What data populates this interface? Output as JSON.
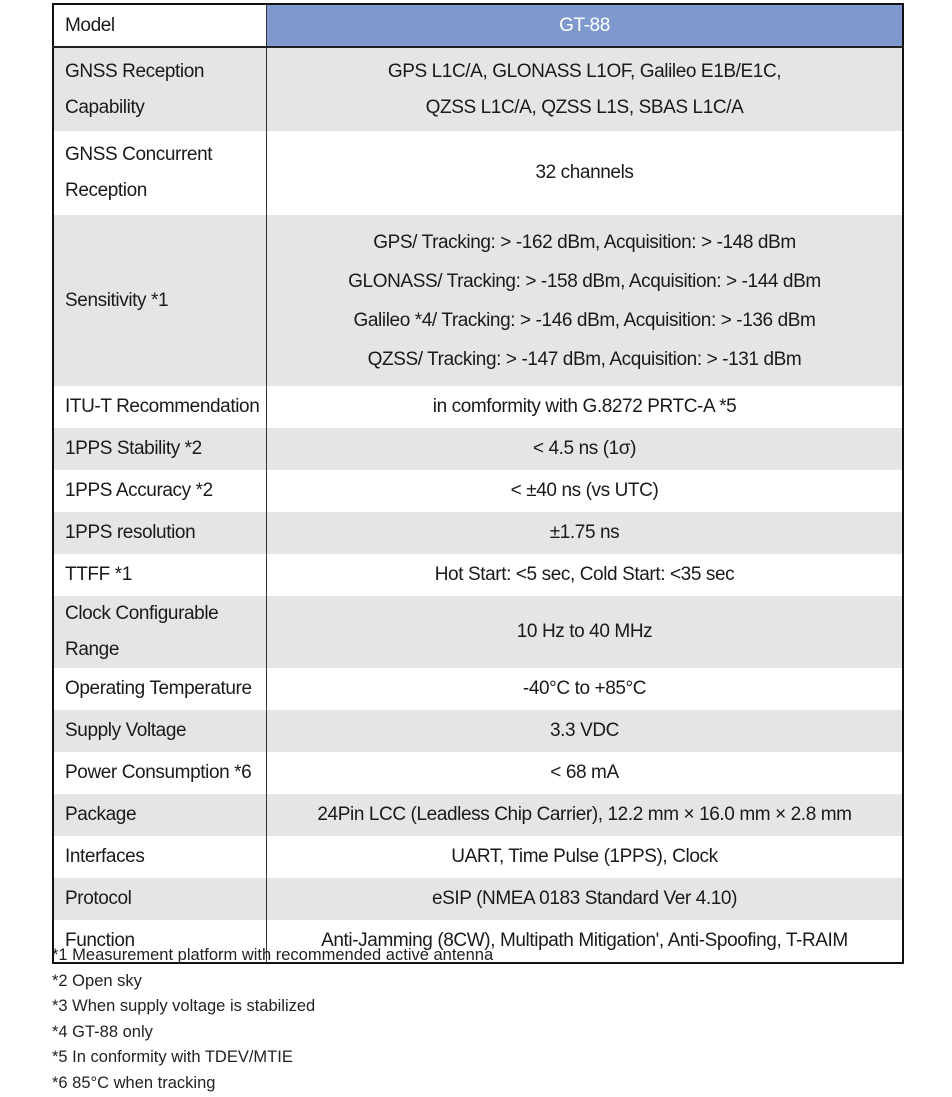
{
  "header": {
    "label": "Model",
    "value": "GT-88"
  },
  "rows": [
    {
      "label": [
        "GNSS Reception",
        "Capability"
      ],
      "value": [
        "GPS L1C/A, GLONASS L1OF, Galileo E1B/E1C,",
        "QZSS L1C/A, QZSS L1S, SBAS L1C/A"
      ]
    },
    {
      "label": [
        "GNSS Concurrent",
        "Reception"
      ],
      "value": [
        "32 channels"
      ]
    },
    {
      "label": [
        "Sensitivity  *1"
      ],
      "value": [
        "GPS/ Tracking: > -162 dBm, Acquisition: > -148 dBm",
        "GLONASS/ Tracking: > -158 dBm, Acquisition: > -144 dBm",
        "Galileo *4/ Tracking: > -146 dBm, Acquisition: > -136 dBm",
        "QZSS/ Tracking: > -147 dBm, Acquisition: > -131 dBm"
      ]
    },
    {
      "label": [
        "ITU-T Recommendation"
      ],
      "value": [
        "in comformity with G.8272 PRTC-A *5"
      ]
    },
    {
      "label": [
        "1PPS Stability *2"
      ],
      "value": [
        "< 4.5 ns (1σ)"
      ]
    },
    {
      "label": [
        "1PPS Accuracy *2"
      ],
      "value": [
        "< ±40 ns (vs UTC)"
      ]
    },
    {
      "label": [
        "1PPS resolution"
      ],
      "value": [
        "±1.75 ns"
      ]
    },
    {
      "label": [
        "TTFF *1"
      ],
      "value": [
        "Hot Start: <5 sec, Cold Start: <35 sec"
      ]
    },
    {
      "label": [
        "Clock Configurable Range"
      ],
      "value": [
        "10 Hz to 40 MHz"
      ]
    },
    {
      "label": [
        "Operating Temperature"
      ],
      "value": [
        "-40°C to +85°C"
      ]
    },
    {
      "label": [
        "Supply Voltage"
      ],
      "value": [
        "3.3 VDC"
      ]
    },
    {
      "label": [
        "Power Consumption *6"
      ],
      "value": [
        "< 68 mA"
      ]
    },
    {
      "label": [
        "Package"
      ],
      "value": [
        "24Pin LCC (Leadless Chip Carrier), 12.2 mm × 16.0 mm × 2.8 mm"
      ]
    },
    {
      "label": [
        "Interfaces"
      ],
      "value": [
        "UART, Time Pulse (1PPS), Clock"
      ]
    },
    {
      "label": [
        "Protocol"
      ],
      "value": [
        "eSIP (NMEA 0183 Standard Ver 4.10)"
      ]
    },
    {
      "label": [
        "Function"
      ],
      "value": [
        "Anti-Jamming (8CW), Multipath Mitigation', Anti-Spoofing, T-RAIM"
      ]
    }
  ],
  "footnotes": [
    "*1 Measurement platform with recommended active antenna",
    "*2 Open sky",
    "*3 When supply voltage is stabilized",
    "*4 GT-88 only",
    "*5 In conformity with TDEV/MTIE",
    "*6 85°C when tracking"
  ],
  "colors": {
    "header_bg": "#7f99cf",
    "stripe": "#e5e5e5"
  }
}
